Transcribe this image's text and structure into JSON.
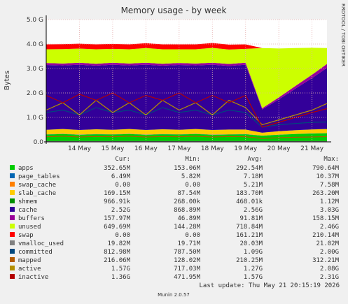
{
  "chart_data": {
    "type": "area",
    "title": "Memory usage - by week",
    "y_label": "Bytes",
    "side_text": "RRDTOOL / TOBI OETIKER",
    "footer": "Last update: Thu May 21 20:15:19 2026",
    "version": "Munin 2.0.57",
    "legend_headers": [
      "Cur:",
      "Min:",
      "Avg:",
      "Max:"
    ],
    "xlim": [
      13.0,
      21.45
    ],
    "ylim": [
      0,
      5000000000.0
    ],
    "grid": true,
    "xticks": [
      {
        "value": 14,
        "label": "14 May"
      },
      {
        "value": 15,
        "label": "15 May"
      },
      {
        "value": 16,
        "label": "16 May"
      },
      {
        "value": 17,
        "label": "17 May"
      },
      {
        "value": 18,
        "label": "18 May"
      },
      {
        "value": 19,
        "label": "19 May"
      },
      {
        "value": 20,
        "label": "20 May"
      },
      {
        "value": 21,
        "label": "21 May"
      }
    ],
    "yticks": [
      {
        "value": 0,
        "label": "0.0"
      },
      {
        "value": 1000000000.0,
        "label": "1.0 G"
      },
      {
        "value": 2000000000.0,
        "label": "2.0 G"
      },
      {
        "value": 3000000000.0,
        "label": "3.0 G"
      },
      {
        "value": 4000000000.0,
        "label": "4.0 G"
      },
      {
        "value": 5000000000.0,
        "label": "5.0 G"
      }
    ],
    "x": [
      13.0,
      13.5,
      14.0,
      14.5,
      15.0,
      15.5,
      16.0,
      16.5,
      17.0,
      17.5,
      18.0,
      18.5,
      19.0,
      19.5,
      20.0,
      20.5,
      21.0,
      21.45
    ],
    "series": [
      {
        "name": "apps",
        "color": "#00cc00",
        "style": "area",
        "cur": "352.65M",
        "min": "153.06M",
        "avg": "292.54M",
        "max": "790.64M",
        "values": [
          300000000.0,
          320000000.0,
          290000000.0,
          310000000.0,
          300000000.0,
          320000000.0,
          290000000.0,
          310000000.0,
          300000000.0,
          320000000.0,
          290000000.0,
          300000000.0,
          310000000.0,
          250000000.0,
          290000000.0,
          320000000.0,
          340000000.0,
          350000000.0
        ]
      },
      {
        "name": "page_tables",
        "color": "#0066b3",
        "style": "area",
        "cur": "6.49M",
        "min": "5.82M",
        "avg": "7.18M",
        "max": "10.37M",
        "values": [
          7000000.0,
          7000000.0,
          7000000.0,
          7000000.0,
          7000000.0,
          7000000.0,
          7000000.0,
          7000000.0,
          7000000.0,
          7000000.0,
          7000000.0,
          7000000.0,
          7000000.0,
          6000000.0,
          6000000.0,
          6000000.0,
          6000000.0,
          6000000.0
        ]
      },
      {
        "name": "swap_cache",
        "color": "#ff8000",
        "style": "area",
        "cur": "0.00",
        "min": "0.00",
        "avg": "5.21M",
        "max": "7.58M",
        "values": [
          7000000.0,
          7000000.0,
          7000000.0,
          7000000.0,
          7000000.0,
          7000000.0,
          7000000.0,
          7000000.0,
          7000000.0,
          7000000.0,
          7000000.0,
          7000000.0,
          7000000.0,
          0,
          0,
          0,
          0,
          0
        ]
      },
      {
        "name": "slab_cache",
        "color": "#ffcc00",
        "style": "area",
        "cur": "169.15M",
        "min": "87.54M",
        "avg": "183.70M",
        "max": "263.20M",
        "values": [
          180000000.0,
          190000000.0,
          180000000.0,
          190000000.0,
          180000000.0,
          190000000.0,
          180000000.0,
          190000000.0,
          180000000.0,
          190000000.0,
          180000000.0,
          190000000.0,
          180000000.0,
          120000000.0,
          140000000.0,
          150000000.0,
          160000000.0,
          170000000.0
        ]
      },
      {
        "name": "shmem",
        "color": "#008f00",
        "style": "area",
        "cur": "966.91k",
        "min": "268.00k",
        "avg": "468.01k",
        "max": "1.12M",
        "values": [
          400000.0,
          400000.0,
          400000.0,
          400000.0,
          400000.0,
          400000.0,
          400000.0,
          400000.0,
          400000.0,
          400000.0,
          400000.0,
          400000.0,
          400000.0,
          500000.0,
          600000.0,
          800000.0,
          900000.0,
          1000000.0
        ]
      },
      {
        "name": "cache",
        "color": "#330099",
        "style": "area",
        "cur": "2.52G",
        "min": "868.89M",
        "avg": "2.56G",
        "max": "3.03G",
        "values": [
          2650000000.0,
          2600000000.0,
          2670000000.0,
          2600000000.0,
          2660000000.0,
          2600000000.0,
          2670000000.0,
          2600000000.0,
          2650000000.0,
          2600000000.0,
          2670000000.0,
          2600000000.0,
          2650000000.0,
          950000000.0,
          1300000000.0,
          1700000000.0,
          2100000000.0,
          2500000000.0
        ]
      },
      {
        "name": "buffers",
        "color": "#990099",
        "style": "area",
        "cur": "157.97M",
        "min": "46.89M",
        "avg": "91.81M",
        "max": "158.15M",
        "values": [
          80000000.0,
          80000000.0,
          80000000.0,
          80000000.0,
          80000000.0,
          80000000.0,
          80000000.0,
          80000000.0,
          80000000.0,
          80000000.0,
          80000000.0,
          80000000.0,
          80000000.0,
          50000000.0,
          80000000.0,
          110000000.0,
          140000000.0,
          158000000.0
        ]
      },
      {
        "name": "unused",
        "color": "#ccff00",
        "style": "area",
        "cur": "649.69M",
        "min": "144.28M",
        "avg": "718.84M",
        "max": "2.46G",
        "values": [
          560000000.0,
          590000000.0,
          580000000.0,
          590000000.0,
          570000000.0,
          580000000.0,
          600000000.0,
          590000000.0,
          560000000.0,
          580000000.0,
          610000000.0,
          590000000.0,
          570000000.0,
          2460000000.0,
          2000000000.0,
          1550000000.0,
          1100000000.0,
          650000000.0
        ]
      },
      {
        "name": "swap",
        "color": "#ff0000",
        "style": "area",
        "cur": "0.00",
        "min": "0.00",
        "avg": "161.21M",
        "max": "210.14M",
        "values": [
          200000000.0,
          200000000.0,
          200000000.0,
          200000000.0,
          200000000.0,
          200000000.0,
          200000000.0,
          200000000.0,
          200000000.0,
          200000000.0,
          200000000.0,
          200000000.0,
          180000000.0,
          0,
          0,
          0,
          0,
          0
        ]
      },
      {
        "name": "vmalloc_used",
        "color": "#808080",
        "style": "line",
        "cur": "19.82M",
        "min": "19.71M",
        "avg": "20.03M",
        "max": "21.02M",
        "values": [
          20000000.0,
          20000000.0,
          20000000.0,
          20000000.0,
          20000000.0,
          20000000.0,
          20000000.0,
          20000000.0,
          20000000.0,
          20000000.0,
          20000000.0,
          20000000.0,
          20000000.0,
          20000000.0,
          20000000.0,
          20000000.0,
          20000000.0,
          20000000.0
        ]
      },
      {
        "name": "committed",
        "color": "#00487d",
        "style": "line",
        "cur": "812.98M",
        "min": "787.50M",
        "avg": "1.09G",
        "max": "2.00G",
        "values": [
          1200000000.0,
          1300000000.0,
          1100000000.0,
          1400000000.0,
          1200000000.0,
          1300000000.0,
          1100000000.0,
          1400000000.0,
          1200000000.0,
          1300000000.0,
          1100000000.0,
          1300000000.0,
          1200000000.0,
          600000000.0,
          700000000.0,
          750000000.0,
          800000000.0,
          810000000.0
        ]
      },
      {
        "name": "mapped",
        "color": "#b35a00",
        "style": "line",
        "cur": "216.06M",
        "min": "128.02M",
        "avg": "210.25M",
        "max": "312.21M",
        "values": [
          210000000.0,
          230000000.0,
          200000000.0,
          220000000.0,
          210000000.0,
          230000000.0,
          200000000.0,
          220000000.0,
          210000000.0,
          230000000.0,
          200000000.0,
          220000000.0,
          210000000.0,
          140000000.0,
          170000000.0,
          190000000.0,
          200000000.0,
          216000000.0
        ]
      },
      {
        "name": "active",
        "color": "#b38f00",
        "style": "line",
        "cur": "1.57G",
        "min": "717.03M",
        "avg": "1.27G",
        "max": "2.08G",
        "values": [
          1300000000.0,
          1600000000.0,
          1100000000.0,
          1700000000.0,
          1200000000.0,
          1600000000.0,
          1100000000.0,
          1700000000.0,
          1300000000.0,
          1600000000.0,
          1100000000.0,
          1700000000.0,
          1400000000.0,
          700000000.0,
          900000000.0,
          1100000000.0,
          1300000000.0,
          1570000000.0
        ]
      },
      {
        "name": "inactive",
        "color": "#b30000",
        "style": "line",
        "cur": "1.36G",
        "min": "471.95M",
        "avg": "1.57G",
        "max": "2.31G",
        "values": [
          1900000000.0,
          1600000000.0,
          1950000000.0,
          1700000000.0,
          2000000000.0,
          1600000000.0,
          1900000000.0,
          1700000000.0,
          2000000000.0,
          1600000000.0,
          1900000000.0,
          1600000000.0,
          1900000000.0,
          600000000.0,
          800000000.0,
          1000000000.0,
          1200000000.0,
          1360000000.0
        ]
      }
    ]
  }
}
